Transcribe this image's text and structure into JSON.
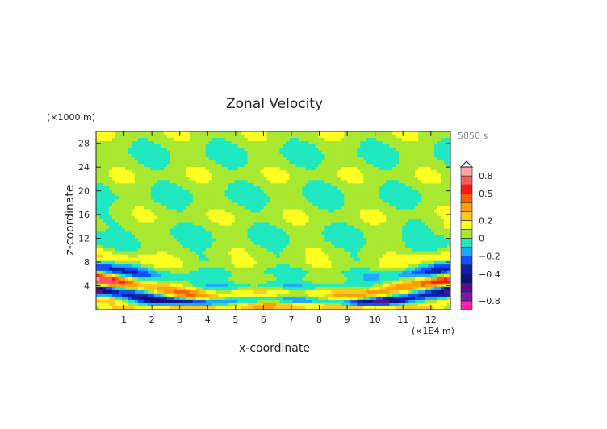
{
  "chart_data": {
    "type": "heatmap",
    "title": "Zonal Velocity",
    "xlabel": "x-coordinate",
    "ylabel": "z-coordinate",
    "x_unit": "(×1E4 m)",
    "y_unit": "(×1000 m)",
    "time_label": "5850 s",
    "xlim": [
      0,
      12.7
    ],
    "ylim": [
      0,
      30
    ],
    "xticks": [
      "1",
      "2",
      "3",
      "4",
      "5",
      "6",
      "7",
      "8",
      "9",
      "10",
      "11",
      "12"
    ],
    "yticks": [
      "4",
      "8",
      "12",
      "16",
      "20",
      "24",
      "28"
    ],
    "colorbar": {
      "levels": [
        -1.0,
        -0.8,
        -0.6,
        -0.5,
        -0.4,
        -0.3,
        -0.2,
        -0.1,
        0,
        0.1,
        0.2,
        0.3,
        0.4,
        0.5,
        0.6,
        0.8,
        1.0
      ],
      "colors": [
        "#ff22aa",
        "#7a18a8",
        "#55108e",
        "#10107c",
        "#0a22a8",
        "#1050ff",
        "#20a8ff",
        "#20e8c0",
        "#a8e830",
        "#ffff22",
        "#ffc822",
        "#ffa000",
        "#ff6000",
        "#ff1818",
        "#ff5a5a",
        "#ffa8a8"
      ],
      "labels": [
        {
          "text": "0.8",
          "value": 0.8
        },
        {
          "text": "0.5",
          "value": 0.5
        },
        {
          "text": "0.2",
          "value": 0.2
        },
        {
          "text": "0",
          "value": 0
        },
        {
          "text": "−0.2",
          "value": -0.2
        },
        {
          "text": "−0.4",
          "value": -0.4
        },
        {
          "text": "−0.8",
          "value": -0.8
        }
      ],
      "extend": "max"
    }
  }
}
